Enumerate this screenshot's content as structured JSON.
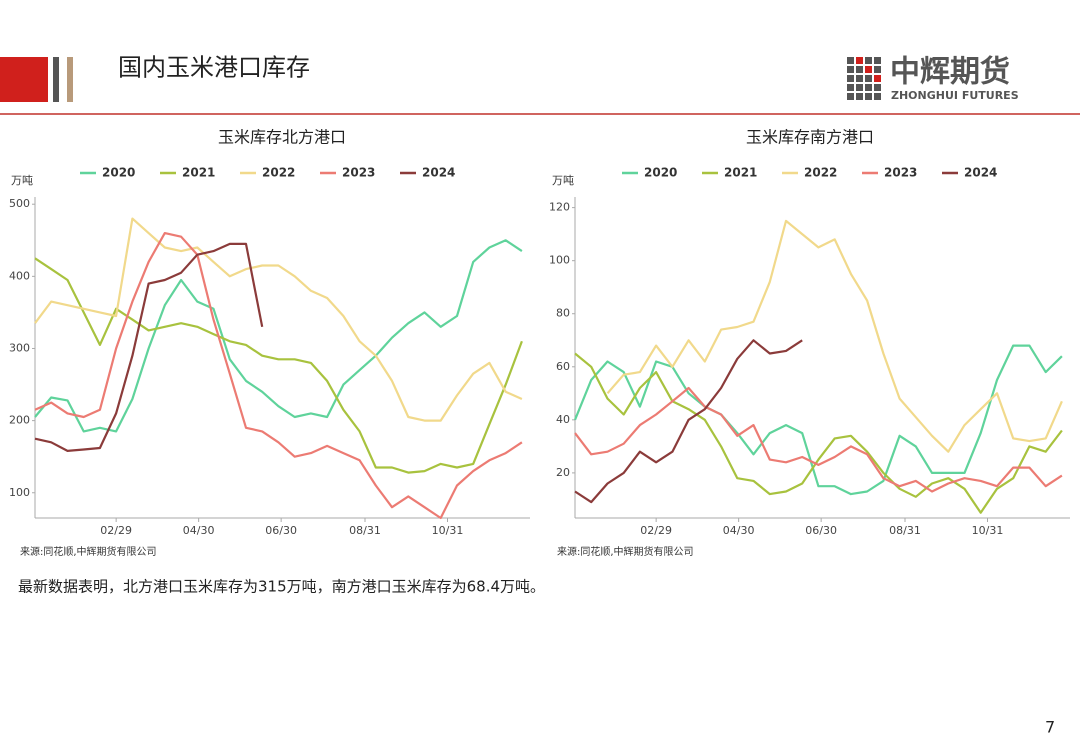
{
  "header": {
    "title": "国内玉米港口库存",
    "logo_cn": "中辉期货",
    "logo_en": "ZHONGHUI FUTURES"
  },
  "chart_data": [
    {
      "type": "line",
      "title": "玉米库存北方港口",
      "unit": "万吨",
      "source": "来源:同花顺,中辉期货有限公司",
      "x": [
        0,
        12,
        24,
        36,
        48,
        60,
        72,
        84,
        96,
        108,
        120,
        132,
        144,
        156,
        168,
        180,
        192,
        204,
        216,
        228,
        240,
        252,
        264,
        276,
        288,
        300,
        312,
        324,
        336,
        348,
        360
      ],
      "xlim": [
        0,
        366
      ],
      "xticks": [
        {
          "value": 60,
          "label": "02/29"
        },
        {
          "value": 121,
          "label": "04/30"
        },
        {
          "value": 182,
          "label": "06/30"
        },
        {
          "value": 244,
          "label": "08/31"
        },
        {
          "value": 305,
          "label": "10/31"
        }
      ],
      "ylim": [
        65,
        510
      ],
      "yticks": [
        100,
        200,
        300,
        400,
        500
      ],
      "series": [
        {
          "name": "2020",
          "color": "#5fd39b",
          "values": [
            205,
            232,
            228,
            185,
            190,
            185,
            230,
            300,
            360,
            395,
            365,
            355,
            285,
            255,
            240,
            220,
            205,
            210,
            205,
            250,
            270,
            290,
            315,
            335,
            350,
            330,
            345,
            420,
            440,
            450,
            435
          ]
        },
        {
          "name": "2021",
          "color": "#a8c23e",
          "values": [
            425,
            410,
            395,
            350,
            305,
            355,
            340,
            325,
            330,
            335,
            330,
            320,
            310,
            305,
            290,
            285,
            285,
            280,
            255,
            215,
            185,
            135,
            135,
            128,
            130,
            140,
            135,
            140,
            195,
            250,
            310
          ]
        },
        {
          "name": "2022",
          "color": "#f1d98b",
          "values": [
            335,
            365,
            360,
            355,
            350,
            345,
            480,
            460,
            440,
            435,
            440,
            420,
            400,
            410,
            415,
            415,
            400,
            380,
            370,
            345,
            310,
            290,
            255,
            205,
            200,
            200,
            235,
            265,
            280,
            240,
            230
          ]
        },
        {
          "name": "2023",
          "color": "#ec7b73",
          "values": [
            215,
            225,
            210,
            205,
            215,
            300,
            365,
            420,
            460,
            455,
            430,
            340,
            265,
            190,
            185,
            170,
            150,
            155,
            165,
            155,
            145,
            110,
            80,
            95,
            80,
            65,
            110,
            130,
            145,
            155,
            170
          ]
        },
        {
          "name": "2024",
          "color": "#8b3b3a",
          "values": [
            175,
            170,
            158,
            160,
            162,
            210,
            290,
            390,
            395,
            405,
            430,
            435,
            445,
            445,
            330,
            null,
            null,
            null,
            null,
            null,
            null,
            null,
            null,
            null,
            null,
            null,
            null,
            null,
            null,
            null,
            null
          ]
        }
      ]
    },
    {
      "type": "line",
      "title": "玉米库存南方港口",
      "unit": "万吨",
      "source": "来源:同花顺,中辉期货有限公司",
      "x": [
        0,
        12,
        24,
        36,
        48,
        60,
        72,
        84,
        96,
        108,
        120,
        132,
        144,
        156,
        168,
        180,
        192,
        204,
        216,
        228,
        240,
        252,
        264,
        276,
        288,
        300,
        312,
        324,
        336,
        348,
        360
      ],
      "xlim": [
        0,
        366
      ],
      "xticks": [
        {
          "value": 60,
          "label": "02/29"
        },
        {
          "value": 121,
          "label": "04/30"
        },
        {
          "value": 182,
          "label": "06/30"
        },
        {
          "value": 244,
          "label": "08/31"
        },
        {
          "value": 305,
          "label": "10/31"
        }
      ],
      "ylim": [
        3,
        124
      ],
      "yticks": [
        20,
        40,
        60,
        80,
        100,
        120
      ],
      "series": [
        {
          "name": "2020",
          "color": "#5fd39b",
          "values": [
            40,
            55,
            62,
            58,
            45,
            62,
            60,
            50,
            45,
            42,
            35,
            27,
            35,
            38,
            35,
            15,
            15,
            12,
            13,
            17,
            34,
            30,
            20,
            20,
            20,
            35,
            55,
            68,
            68,
            58,
            64
          ]
        },
        {
          "name": "2021",
          "color": "#a8c23e",
          "values": [
            65,
            60,
            48,
            42,
            52,
            58,
            47,
            44,
            40,
            30,
            18,
            17,
            12,
            13,
            16,
            25,
            33,
            34,
            28,
            20,
            14,
            11,
            16,
            18,
            14,
            5,
            14,
            18,
            30,
            28,
            36
          ]
        },
        {
          "name": "2022",
          "color": "#f1d98b",
          "values": [
            null,
            null,
            50,
            57,
            58,
            68,
            60,
            70,
            62,
            74,
            75,
            77,
            92,
            115,
            110,
            105,
            108,
            95,
            85,
            65,
            48,
            41,
            34,
            28,
            38,
            44,
            50,
            33,
            32,
            33,
            47
          ]
        },
        {
          "name": "2023",
          "color": "#ec7b73",
          "values": [
            35,
            27,
            28,
            31,
            38,
            42,
            47,
            52,
            45,
            42,
            34,
            38,
            25,
            24,
            26,
            23,
            26,
            30,
            27,
            18,
            15,
            17,
            13,
            16,
            18,
            17,
            15,
            22,
            22,
            15,
            19
          ]
        },
        {
          "name": "2024",
          "color": "#8b3b3a",
          "values": [
            13,
            9,
            16,
            20,
            28,
            24,
            28,
            40,
            44,
            52,
            63,
            70,
            65,
            66,
            70,
            null,
            null,
            null,
            null,
            null,
            null,
            null,
            null,
            null,
            null,
            null,
            null,
            null,
            null,
            null,
            null
          ]
        }
      ]
    }
  ],
  "summary": "最新数据表明，北方港口玉米库存为315万吨，南方港口玉米库存为68.4万吨。",
  "page_number": "7"
}
